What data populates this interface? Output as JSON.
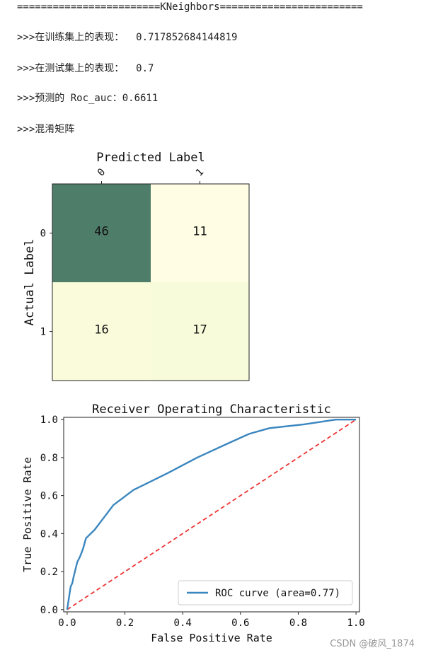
{
  "output": {
    "separator": "========================KNeighbors========================",
    "train_line": ">>>在训练集上的表现：  0.717852684144819",
    "test_line": ">>>在测试集上的表现：  0.7",
    "roc_line": ">>>预测的 Roc_auc：0.6611",
    "cm_line": ">>>混淆矩阵"
  },
  "chart_data": [
    {
      "type": "heatmap",
      "title": "Predicted Label",
      "xlabel": "Predicted Label",
      "ylabel": "Actual Label",
      "x_ticks": [
        "0",
        "1"
      ],
      "y_ticks": [
        "0",
        "1"
      ],
      "values": [
        [
          46,
          11
        ],
        [
          16,
          17
        ]
      ],
      "colormap": "YlGn",
      "colors": {
        "max": "#4e7d6a",
        "mid": "#f0f8cd",
        "low1": "#e9f4c4",
        "low2": "#fffee5"
      }
    },
    {
      "type": "line",
      "title": "Receiver Operating Characteristic",
      "xlabel": "False Positive Rate",
      "ylabel": "True Positive Rate",
      "xlim": [
        0.0,
        1.0
      ],
      "ylim": [
        0.0,
        1.0
      ],
      "x_ticks": [
        "0.0",
        "0.2",
        "0.4",
        "0.6",
        "0.8",
        "1.0"
      ],
      "y_ticks": [
        "0.0",
        "0.2",
        "0.4",
        "0.6",
        "0.8",
        "1.0"
      ],
      "legend": {
        "entry": "ROC curve (area=0.77)",
        "position": "lower-right"
      },
      "series": [
        {
          "name": "ROC curve (area=0.77)",
          "color": "#3a86bf",
          "style": "solid",
          "x": [
            0.0,
            0.005,
            0.012,
            0.018,
            0.022,
            0.035,
            0.045,
            0.055,
            0.065,
            0.095,
            0.12,
            0.16,
            0.23,
            0.27,
            0.35,
            0.45,
            0.55,
            0.63,
            0.7,
            0.82,
            0.93,
            1.0
          ],
          "y": [
            0.0,
            0.05,
            0.12,
            0.14,
            0.17,
            0.25,
            0.28,
            0.32,
            0.375,
            0.42,
            0.47,
            0.55,
            0.63,
            0.66,
            0.72,
            0.8,
            0.87,
            0.925,
            0.955,
            0.975,
            1.0,
            1.0
          ]
        },
        {
          "color": "#ee3333",
          "style": "dashed",
          "x": [
            0.0,
            1.0
          ],
          "y": [
            0.0,
            1.0
          ]
        }
      ]
    }
  ],
  "watermark": "CSDN @破风_1874"
}
